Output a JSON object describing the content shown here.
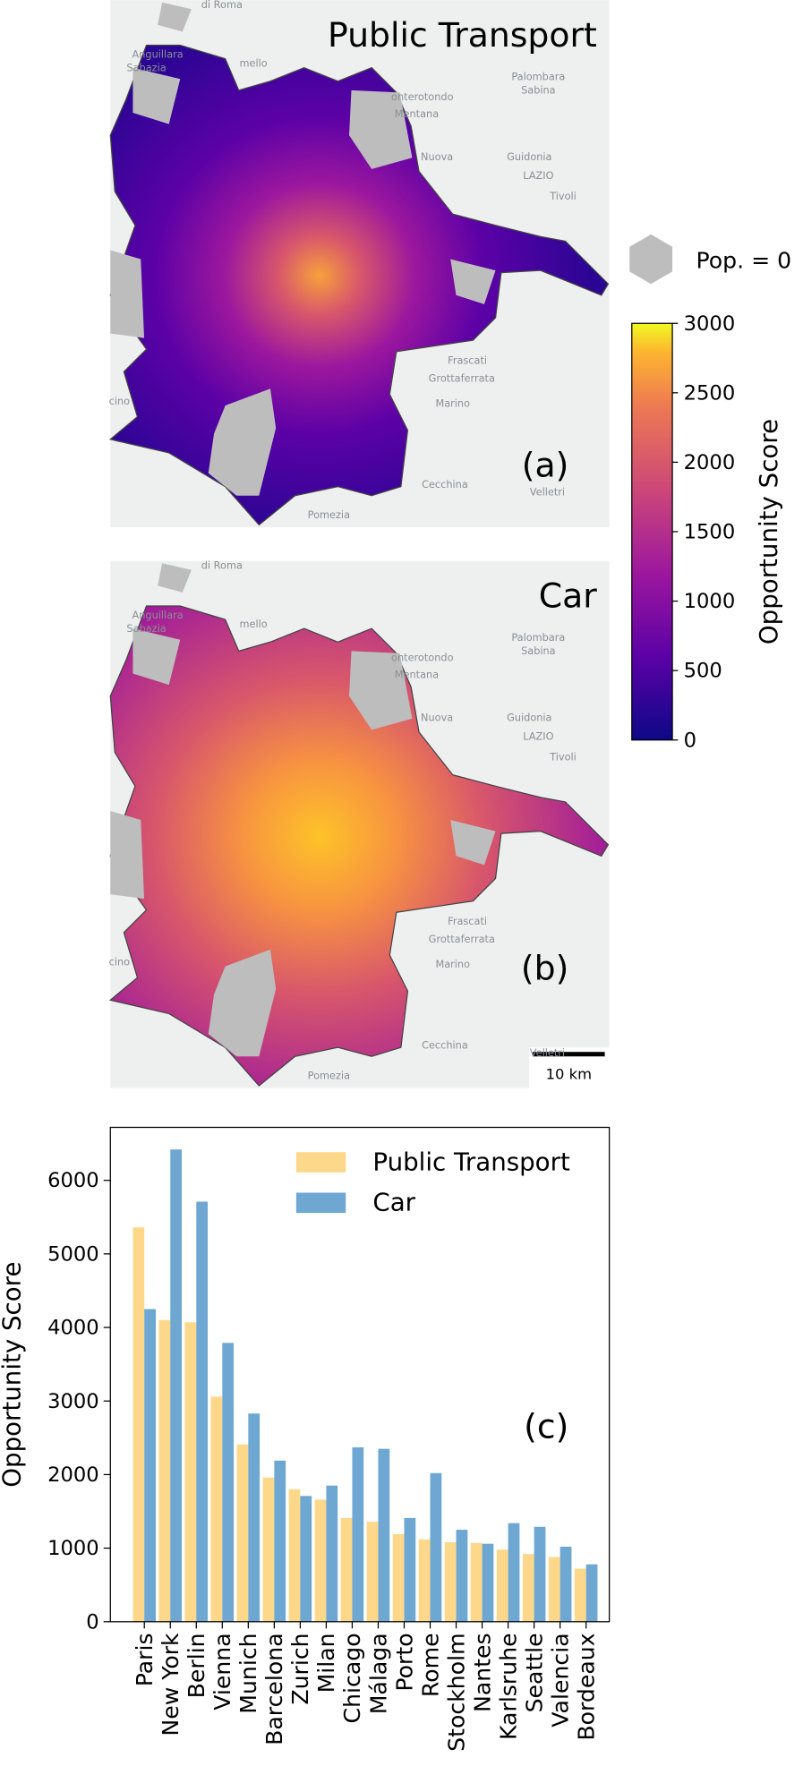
{
  "maps": {
    "panels": [
      {
        "title": "Public Transport",
        "tag": "(a)"
      },
      {
        "title": "Car",
        "tag": "(b)"
      }
    ],
    "place_labels": [
      "di Roma",
      "Anguillara",
      "Sabazia",
      "mello",
      "onterotondo",
      "Mentana",
      "Palombara",
      "Sabina",
      "Nuova",
      "Guidonia",
      "LAZIO",
      "Tivoli",
      "Frascati",
      "Grottaferrata",
      "Marino",
      "Cecchina",
      "Velletri",
      "Pomezia",
      "cino"
    ],
    "scale_bar": "10 km",
    "legend": "Pop. = 0"
  },
  "colorbar": {
    "label": "Opportunity Score",
    "lim": [
      0,
      3000
    ],
    "ticks": [
      0,
      500,
      1000,
      1500,
      2000,
      2500,
      3000
    ]
  },
  "chart_data": {
    "type": "bar",
    "tag": "(c)",
    "y_label": "Opportunity Score",
    "categories": [
      "Paris",
      "New York",
      "Berlin",
      "Vienna",
      "Munich",
      "Barcelona",
      "Zurich",
      "Milan",
      "Chicago",
      "Málaga",
      "Porto",
      "Rome",
      "Stockholm",
      "Nantes",
      "Karlsruhe",
      "Seattle",
      "Valencia",
      "Bordeaux"
    ],
    "series": [
      {
        "name": "Public Transport",
        "color": "#fdd88a",
        "values": [
          5360,
          4100,
          4070,
          3060,
          2410,
          1960,
          1800,
          1660,
          1410,
          1360,
          1190,
          1120,
          1080,
          1070,
          980,
          920,
          880,
          720
        ]
      },
      {
        "name": "Car",
        "color": "#6ea8d2",
        "values": [
          4250,
          6420,
          5710,
          3790,
          2830,
          2190,
          1710,
          1850,
          2370,
          2350,
          1410,
          2020,
          1250,
          1060,
          1340,
          1290,
          1020,
          780
        ]
      }
    ],
    "ylim": [
      0,
      6720
    ],
    "yticks": [
      0,
      1000,
      2000,
      3000,
      4000,
      5000,
      6000
    ]
  }
}
